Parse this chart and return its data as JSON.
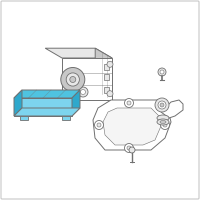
{
  "background_color": "#ffffff",
  "border_color": "#c8c8c8",
  "outline_color": "#707070",
  "highlight_color": "#4fc3e0",
  "highlight_fill": "#7dd4ee",
  "highlight_dark": "#2ea8cc",
  "light_fill": "#e8e8e8",
  "mid_fill": "#c8c8c8",
  "figsize": [
    2.0,
    2.0
  ],
  "dpi": 100
}
